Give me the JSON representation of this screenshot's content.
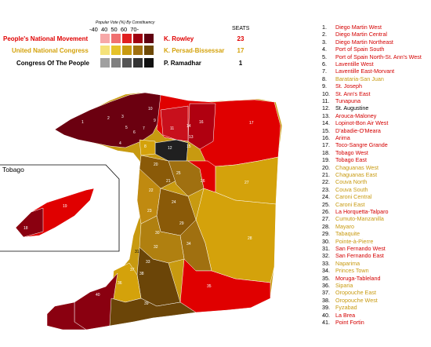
{
  "legend": {
    "title": "Popular Vote (%) By Constituency",
    "ticks": [
      "-40",
      "40",
      "50",
      "60",
      "70-"
    ],
    "seats_header": "SEATS"
  },
  "parties": [
    {
      "name": "People's National Movement",
      "leader": "K. Rowley",
      "seats": "23",
      "color": "#e00000",
      "shades": [
        "#f7a8a8",
        "#f07070",
        "#e02020",
        "#a00010",
        "#600010"
      ]
    },
    {
      "name": "United National Congress",
      "leader": "K. Persad-Bissessar",
      "seats": "17",
      "color": "#d4a20b",
      "shades": [
        "#f5e27a",
        "#e6c22a",
        "#c89a10",
        "#a07010",
        "#6e4a08"
      ]
    },
    {
      "name": "Congress Of The People",
      "leader": "P. Ramadhar",
      "seats": "1",
      "color": "#000000",
      "shades": [
        "#a0a0a0",
        "#808080",
        "#555555",
        "#333333",
        "#101010"
      ]
    }
  ],
  "tobago_label": "Tobago",
  "constituencies": [
    {
      "num": "1.",
      "name": "Diego Martin West",
      "color": "#d40000"
    },
    {
      "num": "2.",
      "name": "Diego Martin Central",
      "color": "#d40000"
    },
    {
      "num": "3.",
      "name": "Diego Martin Northeast",
      "color": "#d40000"
    },
    {
      "num": "4.",
      "name": "Port of Spain South",
      "color": "#d40000"
    },
    {
      "num": "5.",
      "name": "Port of Spain North-St. Ann's West",
      "color": "#d40000"
    },
    {
      "num": "6.",
      "name": "Laventille West",
      "color": "#d40000"
    },
    {
      "num": "7.",
      "name": "Laventille East-Morvant",
      "color": "#d40000"
    },
    {
      "num": "8.",
      "name": "Barataria-San Juan",
      "color": "#c89a10"
    },
    {
      "num": "9.",
      "name": "St. Joseph",
      "color": "#d40000"
    },
    {
      "num": "10.",
      "name": "St. Ann's East",
      "color": "#d40000"
    },
    {
      "num": "11.",
      "name": "Tunapuna",
      "color": "#d40000"
    },
    {
      "num": "12.",
      "name": "St. Augustine",
      "color": "#000000"
    },
    {
      "num": "13.",
      "name": "Arouca-Maloney",
      "color": "#d40000"
    },
    {
      "num": "14.",
      "name": "Lopinot-Bon Air West",
      "color": "#d40000"
    },
    {
      "num": "15.",
      "name": "D'abadie-O'Meara",
      "color": "#d40000"
    },
    {
      "num": "16.",
      "name": "Arima",
      "color": "#d40000"
    },
    {
      "num": "17.",
      "name": "Toco-Sangre Grande",
      "color": "#d40000"
    },
    {
      "num": "18.",
      "name": "Tobago West",
      "color": "#d40000"
    },
    {
      "num": "19.",
      "name": "Tobago East",
      "color": "#d40000"
    },
    {
      "num": "20.",
      "name": "Chaguanas West",
      "color": "#c89a10"
    },
    {
      "num": "21.",
      "name": "Chaguanas East",
      "color": "#c89a10"
    },
    {
      "num": "22.",
      "name": "Couva North",
      "color": "#c89a10"
    },
    {
      "num": "23.",
      "name": "Couva South",
      "color": "#c89a10"
    },
    {
      "num": "24.",
      "name": "Caroni Central",
      "color": "#c89a10"
    },
    {
      "num": "25.",
      "name": "Caroni East",
      "color": "#c89a10"
    },
    {
      "num": "26.",
      "name": "La Horquetta-Talparo",
      "color": "#d40000"
    },
    {
      "num": "27.",
      "name": "Cumuto-Manzanilla",
      "color": "#c89a10"
    },
    {
      "num": "28.",
      "name": "Mayaro",
      "color": "#c89a10"
    },
    {
      "num": "29.",
      "name": "Tabaquite",
      "color": "#c89a10"
    },
    {
      "num": "30.",
      "name": "Pointe-à-Pierre",
      "color": "#c89a10"
    },
    {
      "num": "31.",
      "name": "San Fernando West",
      "color": "#d40000"
    },
    {
      "num": "32.",
      "name": "San Fernando East",
      "color": "#d40000"
    },
    {
      "num": "33.",
      "name": "Naparima",
      "color": "#c89a10"
    },
    {
      "num": "34.",
      "name": "Princes Town",
      "color": "#c89a10"
    },
    {
      "num": "35.",
      "name": "Moruga-Tableland",
      "color": "#d40000"
    },
    {
      "num": "36.",
      "name": "Siparia",
      "color": "#c89a10"
    },
    {
      "num": "37.",
      "name": "Oropouche East",
      "color": "#c89a10"
    },
    {
      "num": "38.",
      "name": "Oropouche West",
      "color": "#c89a10"
    },
    {
      "num": "39.",
      "name": "Fyzabad",
      "color": "#c89a10"
    },
    {
      "num": "40.",
      "name": "La Brea",
      "color": "#d40000"
    },
    {
      "num": "41.",
      "name": "Point Fortin",
      "color": "#d40000"
    }
  ],
  "map_labels": [
    "1",
    "2",
    "3",
    "4",
    "5",
    "6",
    "7",
    "8",
    "9",
    "10",
    "11",
    "12",
    "13",
    "14",
    "15",
    "16",
    "17",
    "18",
    "19",
    "20",
    "21",
    "22",
    "23",
    "24",
    "25",
    "26",
    "27",
    "28",
    "29",
    "30",
    "31",
    "32",
    "33",
    "34",
    "35",
    "36",
    "37",
    "38",
    "39",
    "40",
    "41"
  ]
}
